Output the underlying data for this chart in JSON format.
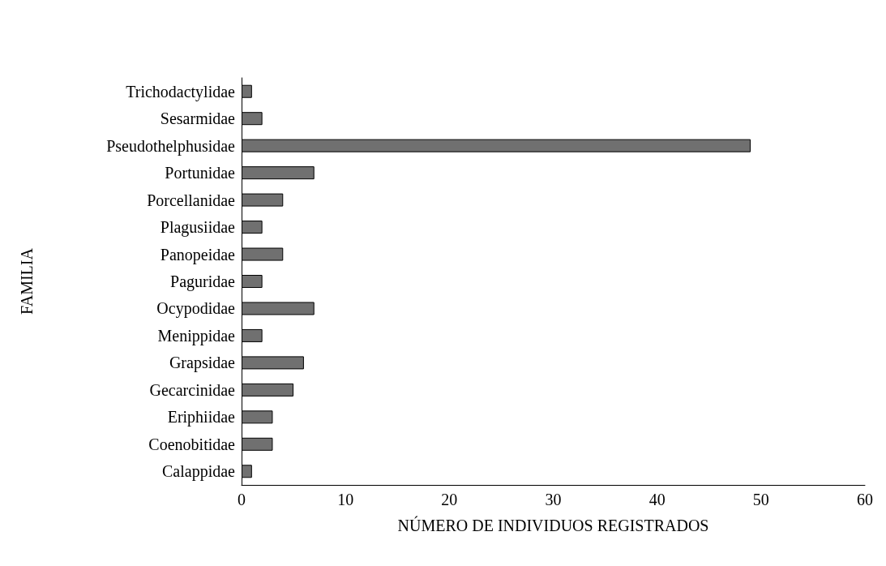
{
  "chart_data": {
    "type": "bar",
    "orientation": "horizontal",
    "xlabel": "NÚMERO DE INDIVIDUOS REGISTRADOS",
    "ylabel": "FAMILIA",
    "categories": [
      "Trichodactylidae",
      "Sesarmidae",
      "Pseudothelphusidae",
      "Portunidae",
      "Porcellanidae",
      "Plagusiidae",
      "Panopeidae",
      "Paguridae",
      "Ocypodidae",
      "Menippidae",
      "Grapsidae",
      "Gecarcinidae",
      "Eriphiidae",
      "Coenobitidae",
      "Calappidae"
    ],
    "values": [
      1,
      2,
      49,
      7,
      4,
      2,
      4,
      2,
      7,
      2,
      6,
      5,
      3,
      3,
      1
    ],
    "color": "#707070",
    "xlim": [
      0,
      60
    ],
    "xticks": [
      0,
      10,
      20,
      30,
      40,
      50,
      60
    ],
    "grid": false
  }
}
